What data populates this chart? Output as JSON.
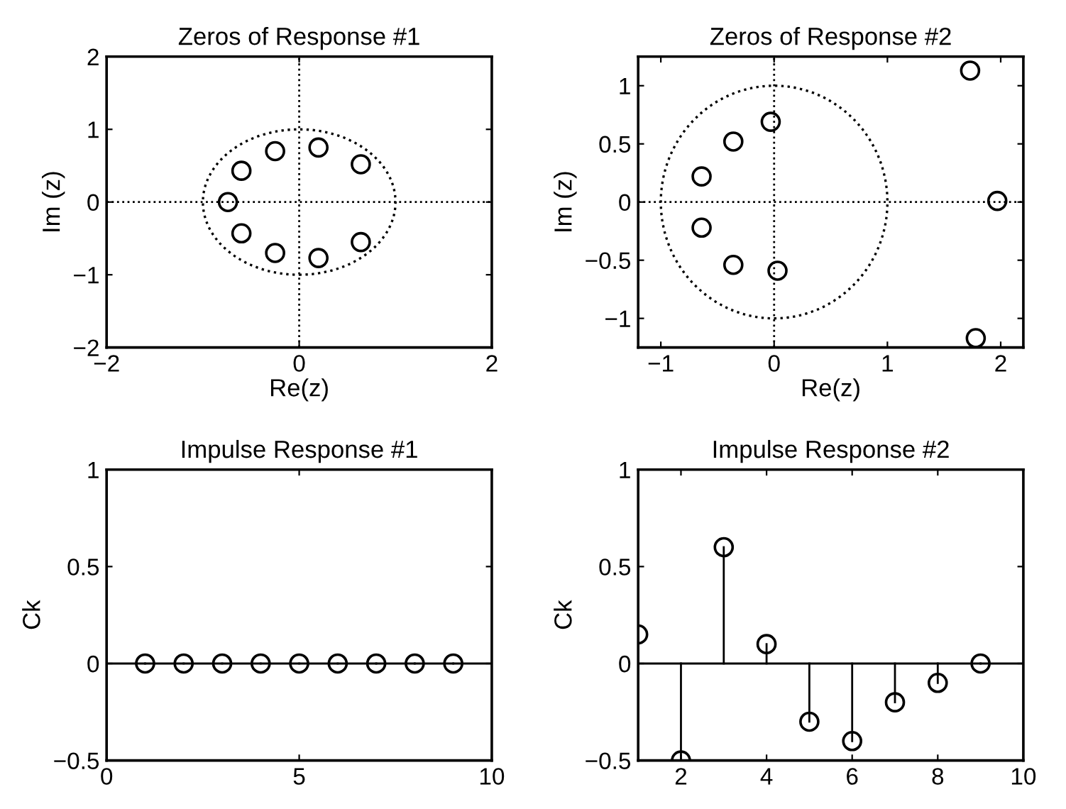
{
  "chart_data": [
    {
      "type": "scatter",
      "title": "Zeros of Response #1",
      "xlabel": "Re(z)",
      "ylabel": "Im (z)",
      "xlim": [
        -2,
        2
      ],
      "ylim": [
        -2,
        2
      ],
      "xticks": [
        -2,
        0,
        2
      ],
      "yticks": [
        -2,
        -1,
        0,
        1,
        2
      ],
      "marker": "circle",
      "grid": false,
      "legend": false,
      "ref_lines": [
        {
          "axis": "x",
          "value": 0,
          "line_style": "dotted",
          "color": "#000000"
        },
        {
          "axis": "y",
          "value": 0,
          "line_style": "dotted",
          "color": "#000000"
        }
      ],
      "series": [
        {
          "type": "scatter",
          "color": "#000000",
          "x": [
            0.2,
            0.64,
            -0.25,
            -0.6,
            -0.74,
            -0.6,
            -0.25,
            0.2,
            0.64
          ],
          "values": [
            0.75,
            0.52,
            0.7,
            0.43,
            0,
            -0.43,
            -0.7,
            -0.77,
            -0.55
          ]
        }
      ]
    },
    {
      "type": "scatter",
      "title": "Zeros of Response #2",
      "xlabel": "Re(z)",
      "ylabel": "Im (z)",
      "xlim": [
        -1.2,
        2.2
      ],
      "ylim": [
        -1.25,
        1.25
      ],
      "xticks": [
        -1,
        0,
        1,
        2
      ],
      "yticks": [
        -1,
        -0.5,
        0,
        0.5,
        1
      ],
      "marker": "circle",
      "grid": false,
      "legend": false,
      "ref_lines": [
        {
          "axis": "x",
          "value": 0,
          "line_style": "dotted",
          "color": "#000000"
        },
        {
          "axis": "y",
          "value": 0,
          "line_style": "dotted",
          "color": "#000000"
        }
      ],
      "series": [
        {
          "type": "scatter",
          "color": "#000000",
          "x": [
            1.73,
            1.97,
            1.78,
            -0.03,
            -0.36,
            -0.64,
            -0.64,
            -0.36,
            0.03
          ],
          "values": [
            1.13,
            0.01,
            -1.17,
            0.69,
            0.52,
            0.22,
            -0.22,
            -0.54,
            -0.59
          ]
        }
      ]
    },
    {
      "type": "lollipop",
      "title": "Impulse Response #1",
      "ylabel": "Ck",
      "xlim": [
        0,
        10
      ],
      "ylim": [
        -0.5,
        1
      ],
      "xticks": [
        0,
        5,
        10
      ],
      "yticks": [
        -0.5,
        0,
        0.5,
        1
      ],
      "marker": "circle",
      "grid": false,
      "legend": false,
      "ref_lines": [
        {
          "axis": "y",
          "value": 0,
          "line_style": "solid",
          "color": "#000000"
        }
      ],
      "series": [
        {
          "color": "#000000",
          "x": [
            1,
            2,
            3,
            4,
            5,
            6,
            7,
            8,
            9
          ],
          "values": [
            0,
            0,
            0,
            0,
            0,
            0,
            0,
            0,
            0
          ]
        }
      ]
    },
    {
      "type": "lollipop",
      "title": "Impulse Response #2",
      "ylabel": "Ck",
      "xlim": [
        1,
        10
      ],
      "ylim": [
        -0.5,
        1
      ],
      "xticks": [
        2,
        4,
        6,
        8,
        10
      ],
      "yticks": [
        -0.5,
        0,
        0.5,
        1
      ],
      "marker": "circle",
      "grid": false,
      "legend": false,
      "ref_lines": [
        {
          "axis": "y",
          "value": 0,
          "line_style": "solid",
          "color": "#000000"
        }
      ],
      "series": [
        {
          "color": "#000000",
          "x": [
            1,
            2,
            3,
            4,
            5,
            6,
            7,
            8,
            9
          ],
          "values": [
            0.15,
            -0.5,
            0.6,
            0.1,
            -0.3,
            -0.4,
            -0.2,
            -0.1,
            0
          ]
        }
      ]
    }
  ]
}
